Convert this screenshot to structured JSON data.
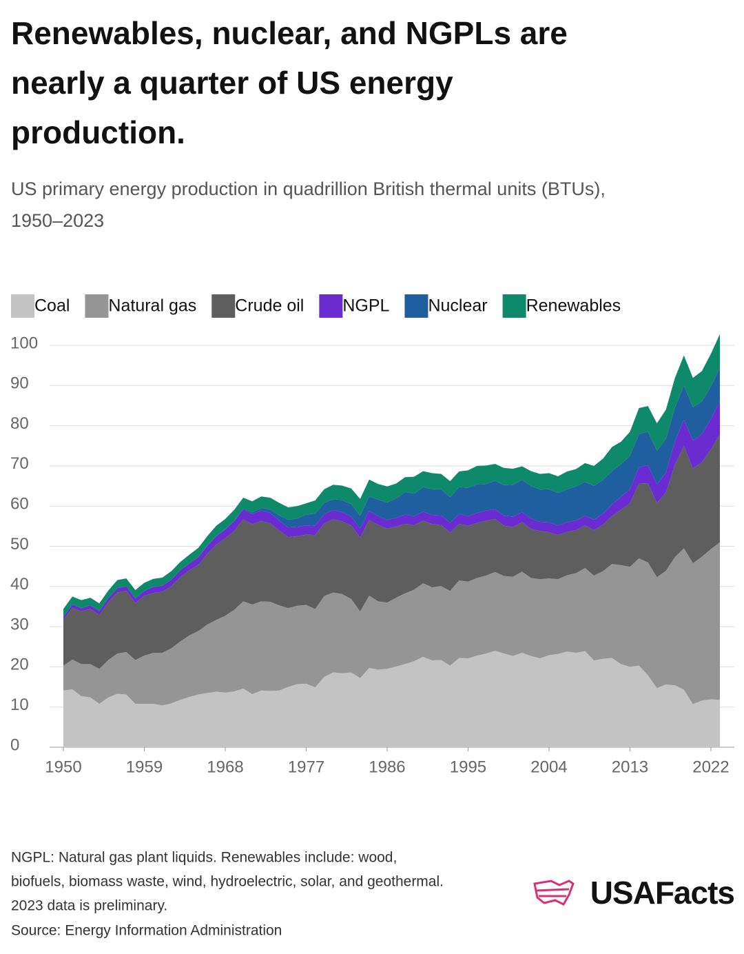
{
  "title": [
    "Renewables, nuclear, and NGPLs are",
    "nearly a quarter of US energy",
    "production."
  ],
  "subtitle": [
    "US primary energy production in quadrillion British thermal units (BTUs),",
    "1950–2023"
  ],
  "notes": [
    "NGPL: Natural gas plant liquids. Renewables include: wood,",
    "biofuels, biomass waste, wind, hydroelectric, solar, and geothermal.",
    "2023 data is preliminary.",
    "Source: Energy Information Administration"
  ],
  "logo": "USAFacts",
  "chart_data": {
    "type": "stacked-area",
    "x": [
      1950,
      1951,
      1952,
      1953,
      1954,
      1955,
      1956,
      1957,
      1958,
      1959,
      1960,
      1961,
      1962,
      1963,
      1964,
      1965,
      1966,
      1967,
      1968,
      1969,
      1970,
      1971,
      1972,
      1973,
      1974,
      1975,
      1976,
      1977,
      1978,
      1979,
      1980,
      1981,
      1982,
      1983,
      1984,
      1985,
      1986,
      1987,
      1988,
      1989,
      1990,
      1991,
      1992,
      1993,
      1994,
      1995,
      1996,
      1997,
      1998,
      1999,
      2000,
      2001,
      2002,
      2003,
      2004,
      2005,
      2006,
      2007,
      2008,
      2009,
      2010,
      2011,
      2012,
      2013,
      2014,
      2015,
      2016,
      2017,
      2018,
      2019,
      2020,
      2021,
      2022,
      2023
    ],
    "xlim": [
      1950,
      2023
    ],
    "xticks": [
      1950,
      1959,
      1968,
      1977,
      1986,
      1995,
      2004,
      2013,
      2022
    ],
    "ylim": [
      0,
      100
    ],
    "yticks": [
      0,
      10,
      20,
      30,
      40,
      50,
      60,
      70,
      80,
      90,
      100
    ],
    "grid": true,
    "series": [
      {
        "name": "Coal",
        "color": "#c3c3c3",
        "values": [
          14.1,
          14.4,
          12.7,
          12.4,
          10.8,
          12.4,
          13.3,
          13.1,
          10.8,
          10.8,
          10.8,
          10.4,
          10.9,
          11.8,
          12.5,
          13.1,
          13.5,
          13.8,
          13.6,
          13.9,
          14.6,
          13.2,
          14.1,
          14.0,
          14.1,
          15.0,
          15.7,
          15.8,
          14.9,
          17.5,
          18.6,
          18.4,
          18.6,
          17.2,
          19.7,
          19.3,
          19.5,
          20.1,
          20.7,
          21.4,
          22.5,
          21.6,
          21.7,
          20.3,
          22.2,
          22.1,
          22.8,
          23.3,
          24.0,
          23.3,
          22.7,
          23.5,
          22.7,
          22.1,
          22.9,
          23.2,
          23.8,
          23.5,
          23.9,
          21.6,
          22.0,
          22.2,
          20.7,
          20.0,
          20.3,
          17.9,
          14.7,
          15.6,
          15.4,
          14.3,
          10.7,
          11.6,
          11.9,
          11.8
        ]
      },
      {
        "name": "Natural gas",
        "color": "#959595",
        "values": [
          6.2,
          7.4,
          8.0,
          8.3,
          8.7,
          9.3,
          10.0,
          10.6,
          10.9,
          12.0,
          12.7,
          13.1,
          13.7,
          14.5,
          15.3,
          15.8,
          17.0,
          17.9,
          19.1,
          20.3,
          21.7,
          22.3,
          22.2,
          22.2,
          21.2,
          19.6,
          19.5,
          19.6,
          19.5,
          20.1,
          19.9,
          19.7,
          18.3,
          16.6,
          18.0,
          17.0,
          16.5,
          17.1,
          17.6,
          17.8,
          18.3,
          18.2,
          18.4,
          18.6,
          19.3,
          19.1,
          19.3,
          19.4,
          19.6,
          19.3,
          19.7,
          20.2,
          19.4,
          19.7,
          19.1,
          18.6,
          19.0,
          19.8,
          20.7,
          21.1,
          21.8,
          23.4,
          24.6,
          24.9,
          26.7,
          28.1,
          27.6,
          28.3,
          31.9,
          35.2,
          35.1,
          35.8,
          37.4,
          39.2
        ]
      },
      {
        "name": "Crude oil",
        "color": "#5e5e5e",
        "values": [
          11.4,
          12.9,
          13.1,
          13.7,
          13.4,
          14.4,
          15.2,
          15.2,
          14.2,
          14.9,
          14.9,
          15.2,
          15.5,
          16.0,
          16.2,
          16.5,
          17.6,
          18.7,
          19.3,
          19.6,
          20.4,
          20.0,
          20.0,
          19.5,
          18.6,
          17.7,
          17.3,
          17.5,
          18.4,
          18.1,
          18.2,
          18.1,
          18.3,
          18.4,
          18.8,
          19.0,
          18.4,
          17.7,
          17.3,
          16.1,
          15.6,
          15.7,
          15.2,
          14.5,
          14.1,
          13.9,
          13.7,
          13.7,
          13.2,
          12.5,
          12.4,
          12.3,
          12.2,
          12.0,
          11.5,
          11.0,
          10.8,
          10.7,
          10.6,
          11.3,
          11.6,
          11.9,
          13.8,
          15.8,
          18.6,
          19.7,
          18.5,
          19.5,
          23.0,
          25.5,
          23.6,
          23.5,
          24.8,
          26.8
        ]
      },
      {
        "name": "NGPL",
        "color": "#6a2bd1",
        "values": [
          0.7,
          0.8,
          0.8,
          0.9,
          1.0,
          1.0,
          1.1,
          1.1,
          1.1,
          1.2,
          1.5,
          1.5,
          1.6,
          1.7,
          1.7,
          1.9,
          2.0,
          2.1,
          2.2,
          2.4,
          2.5,
          2.5,
          2.6,
          2.6,
          2.5,
          2.4,
          2.3,
          2.3,
          2.3,
          2.3,
          2.3,
          2.3,
          2.2,
          2.2,
          2.3,
          2.2,
          2.1,
          2.2,
          2.3,
          2.2,
          2.2,
          2.3,
          2.4,
          2.4,
          2.4,
          2.4,
          2.5,
          2.5,
          2.4,
          2.5,
          2.6,
          2.5,
          2.6,
          2.3,
          2.5,
          2.3,
          2.4,
          2.4,
          2.4,
          2.6,
          2.7,
          2.9,
          3.2,
          3.5,
          4.0,
          4.5,
          4.6,
          4.9,
          5.8,
          6.5,
          6.9,
          7.0,
          7.6,
          8.3
        ]
      },
      {
        "name": "Nuclear",
        "color": "#1f5f9f",
        "values": [
          0,
          0,
          0,
          0,
          0,
          0,
          0,
          0,
          0,
          0,
          0,
          0,
          0,
          0,
          0,
          0,
          0.1,
          0.1,
          0.1,
          0.2,
          0.2,
          0.4,
          0.6,
          0.9,
          1.3,
          1.9,
          2.1,
          2.7,
          3.0,
          2.8,
          2.7,
          3.0,
          3.1,
          3.2,
          3.6,
          4.1,
          4.4,
          4.8,
          5.6,
          5.6,
          6.1,
          6.4,
          6.5,
          6.4,
          6.7,
          7.1,
          7.1,
          6.6,
          7.1,
          7.6,
          7.9,
          8.0,
          8.1,
          8.0,
          8.2,
          8.2,
          8.2,
          8.5,
          8.4,
          8.4,
          8.4,
          8.3,
          8.1,
          8.3,
          8.3,
          8.3,
          8.4,
          8.4,
          8.4,
          8.5,
          8.3,
          8.1,
          8.1,
          8.2
        ]
      },
      {
        "name": "Renewables",
        "color": "#0e8a6b",
        "values": [
          2.0,
          2.0,
          2.0,
          1.9,
          1.9,
          1.9,
          2.0,
          2.0,
          2.1,
          2.0,
          2.0,
          2.0,
          2.1,
          2.1,
          2.2,
          2.3,
          2.3,
          2.5,
          2.5,
          2.7,
          2.7,
          2.8,
          2.9,
          2.9,
          3.1,
          3.1,
          3.1,
          2.8,
          3.3,
          3.4,
          3.6,
          3.6,
          3.9,
          4.2,
          4.2,
          3.9,
          4.0,
          3.7,
          3.7,
          4.2,
          4.0,
          4.0,
          3.8,
          4.0,
          3.9,
          4.3,
          4.6,
          4.6,
          4.2,
          4.3,
          4.0,
          3.4,
          3.7,
          3.9,
          4.0,
          4.1,
          4.4,
          4.3,
          4.7,
          5.0,
          5.3,
          6.0,
          5.6,
          6.0,
          6.5,
          6.4,
          6.8,
          7.3,
          7.4,
          7.5,
          7.3,
          7.6,
          8.1,
          8.5
        ]
      }
    ]
  }
}
